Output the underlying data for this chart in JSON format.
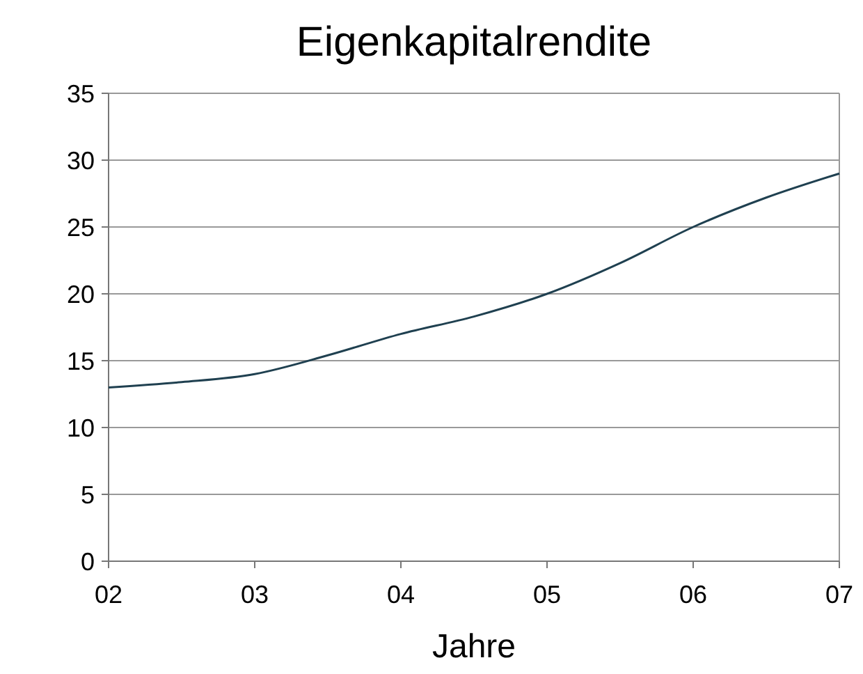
{
  "chart_data": {
    "type": "line",
    "title": "Eigenkapitalrendite",
    "xlabel": "Jahre",
    "x": [
      2,
      2.5,
      3,
      3.5,
      4,
      4.5,
      5,
      5.5,
      6,
      6.5,
      7
    ],
    "series": [
      {
        "color": "#1f4050",
        "values": [
          13,
          13.4,
          14,
          15.4,
          17,
          18.3,
          20,
          22.3,
          25,
          27.2,
          29
        ]
      }
    ],
    "xlim": [
      2,
      7
    ],
    "xticks": [
      {
        "value": 2,
        "label": "02"
      },
      {
        "value": 3,
        "label": "03"
      },
      {
        "value": 4,
        "label": "04"
      },
      {
        "value": 5,
        "label": "05"
      },
      {
        "value": 6,
        "label": "06"
      },
      {
        "value": 7,
        "label": "07"
      }
    ],
    "ylim": [
      0,
      35
    ],
    "yticks": [
      0,
      5,
      10,
      15,
      20,
      25,
      30,
      35
    ],
    "grid": "y",
    "marker": "none",
    "line_style": "solid"
  }
}
